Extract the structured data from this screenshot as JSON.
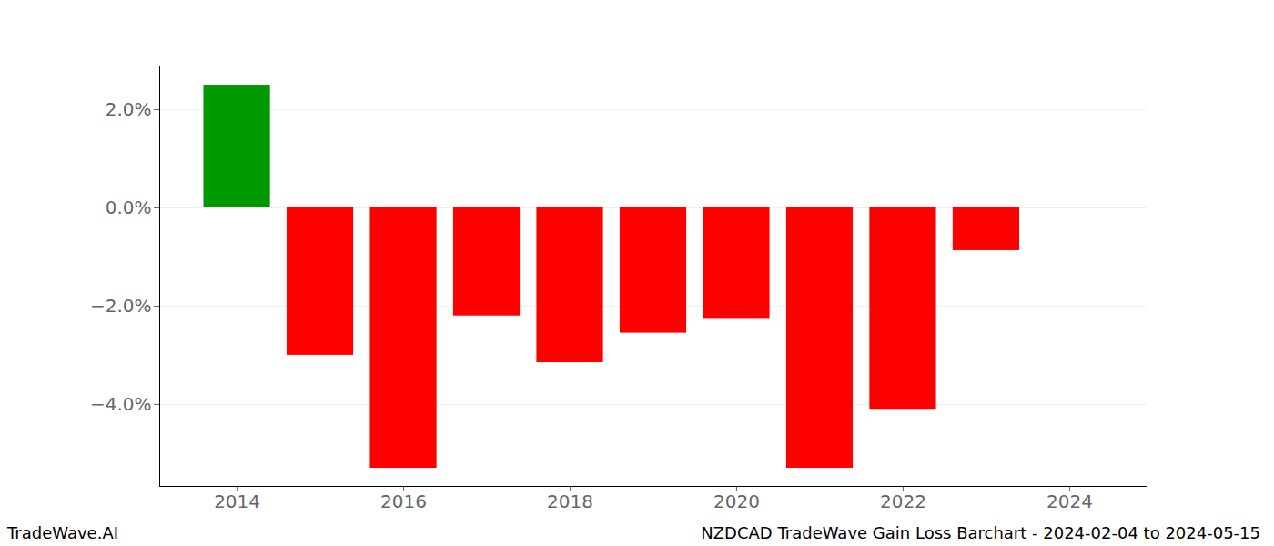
{
  "chart_data": {
    "type": "bar",
    "title": "NZDCAD TradeWave Gain Loss Barchart - 2024-02-04 to 2024-05-15",
    "source": "TradeWave.AI",
    "x": [
      2014,
      2015,
      2016,
      2017,
      2018,
      2019,
      2020,
      2021,
      2022,
      2023
    ],
    "values": [
      2.5,
      -3.0,
      -5.3,
      -2.2,
      -3.15,
      -2.55,
      -2.25,
      -5.3,
      -4.1,
      -0.87
    ],
    "colors": [
      "#009900",
      "#ff0000",
      "#ff0000",
      "#ff0000",
      "#ff0000",
      "#ff0000",
      "#ff0000",
      "#ff0000",
      "#ff0000",
      "#ff0000"
    ],
    "xlim": [
      2013.07,
      2024.93
    ],
    "xticks": [
      2014,
      2016,
      2018,
      2020,
      2022,
      2024
    ],
    "ylim": [
      -5.67,
      2.89
    ],
    "yticks": [
      {
        "value": -4,
        "label": "−4.0%"
      },
      {
        "value": -2,
        "label": "−2.0%"
      },
      {
        "value": 0,
        "label": "0.0%"
      },
      {
        "value": 2,
        "label": "2.0%"
      }
    ],
    "grid": true
  }
}
